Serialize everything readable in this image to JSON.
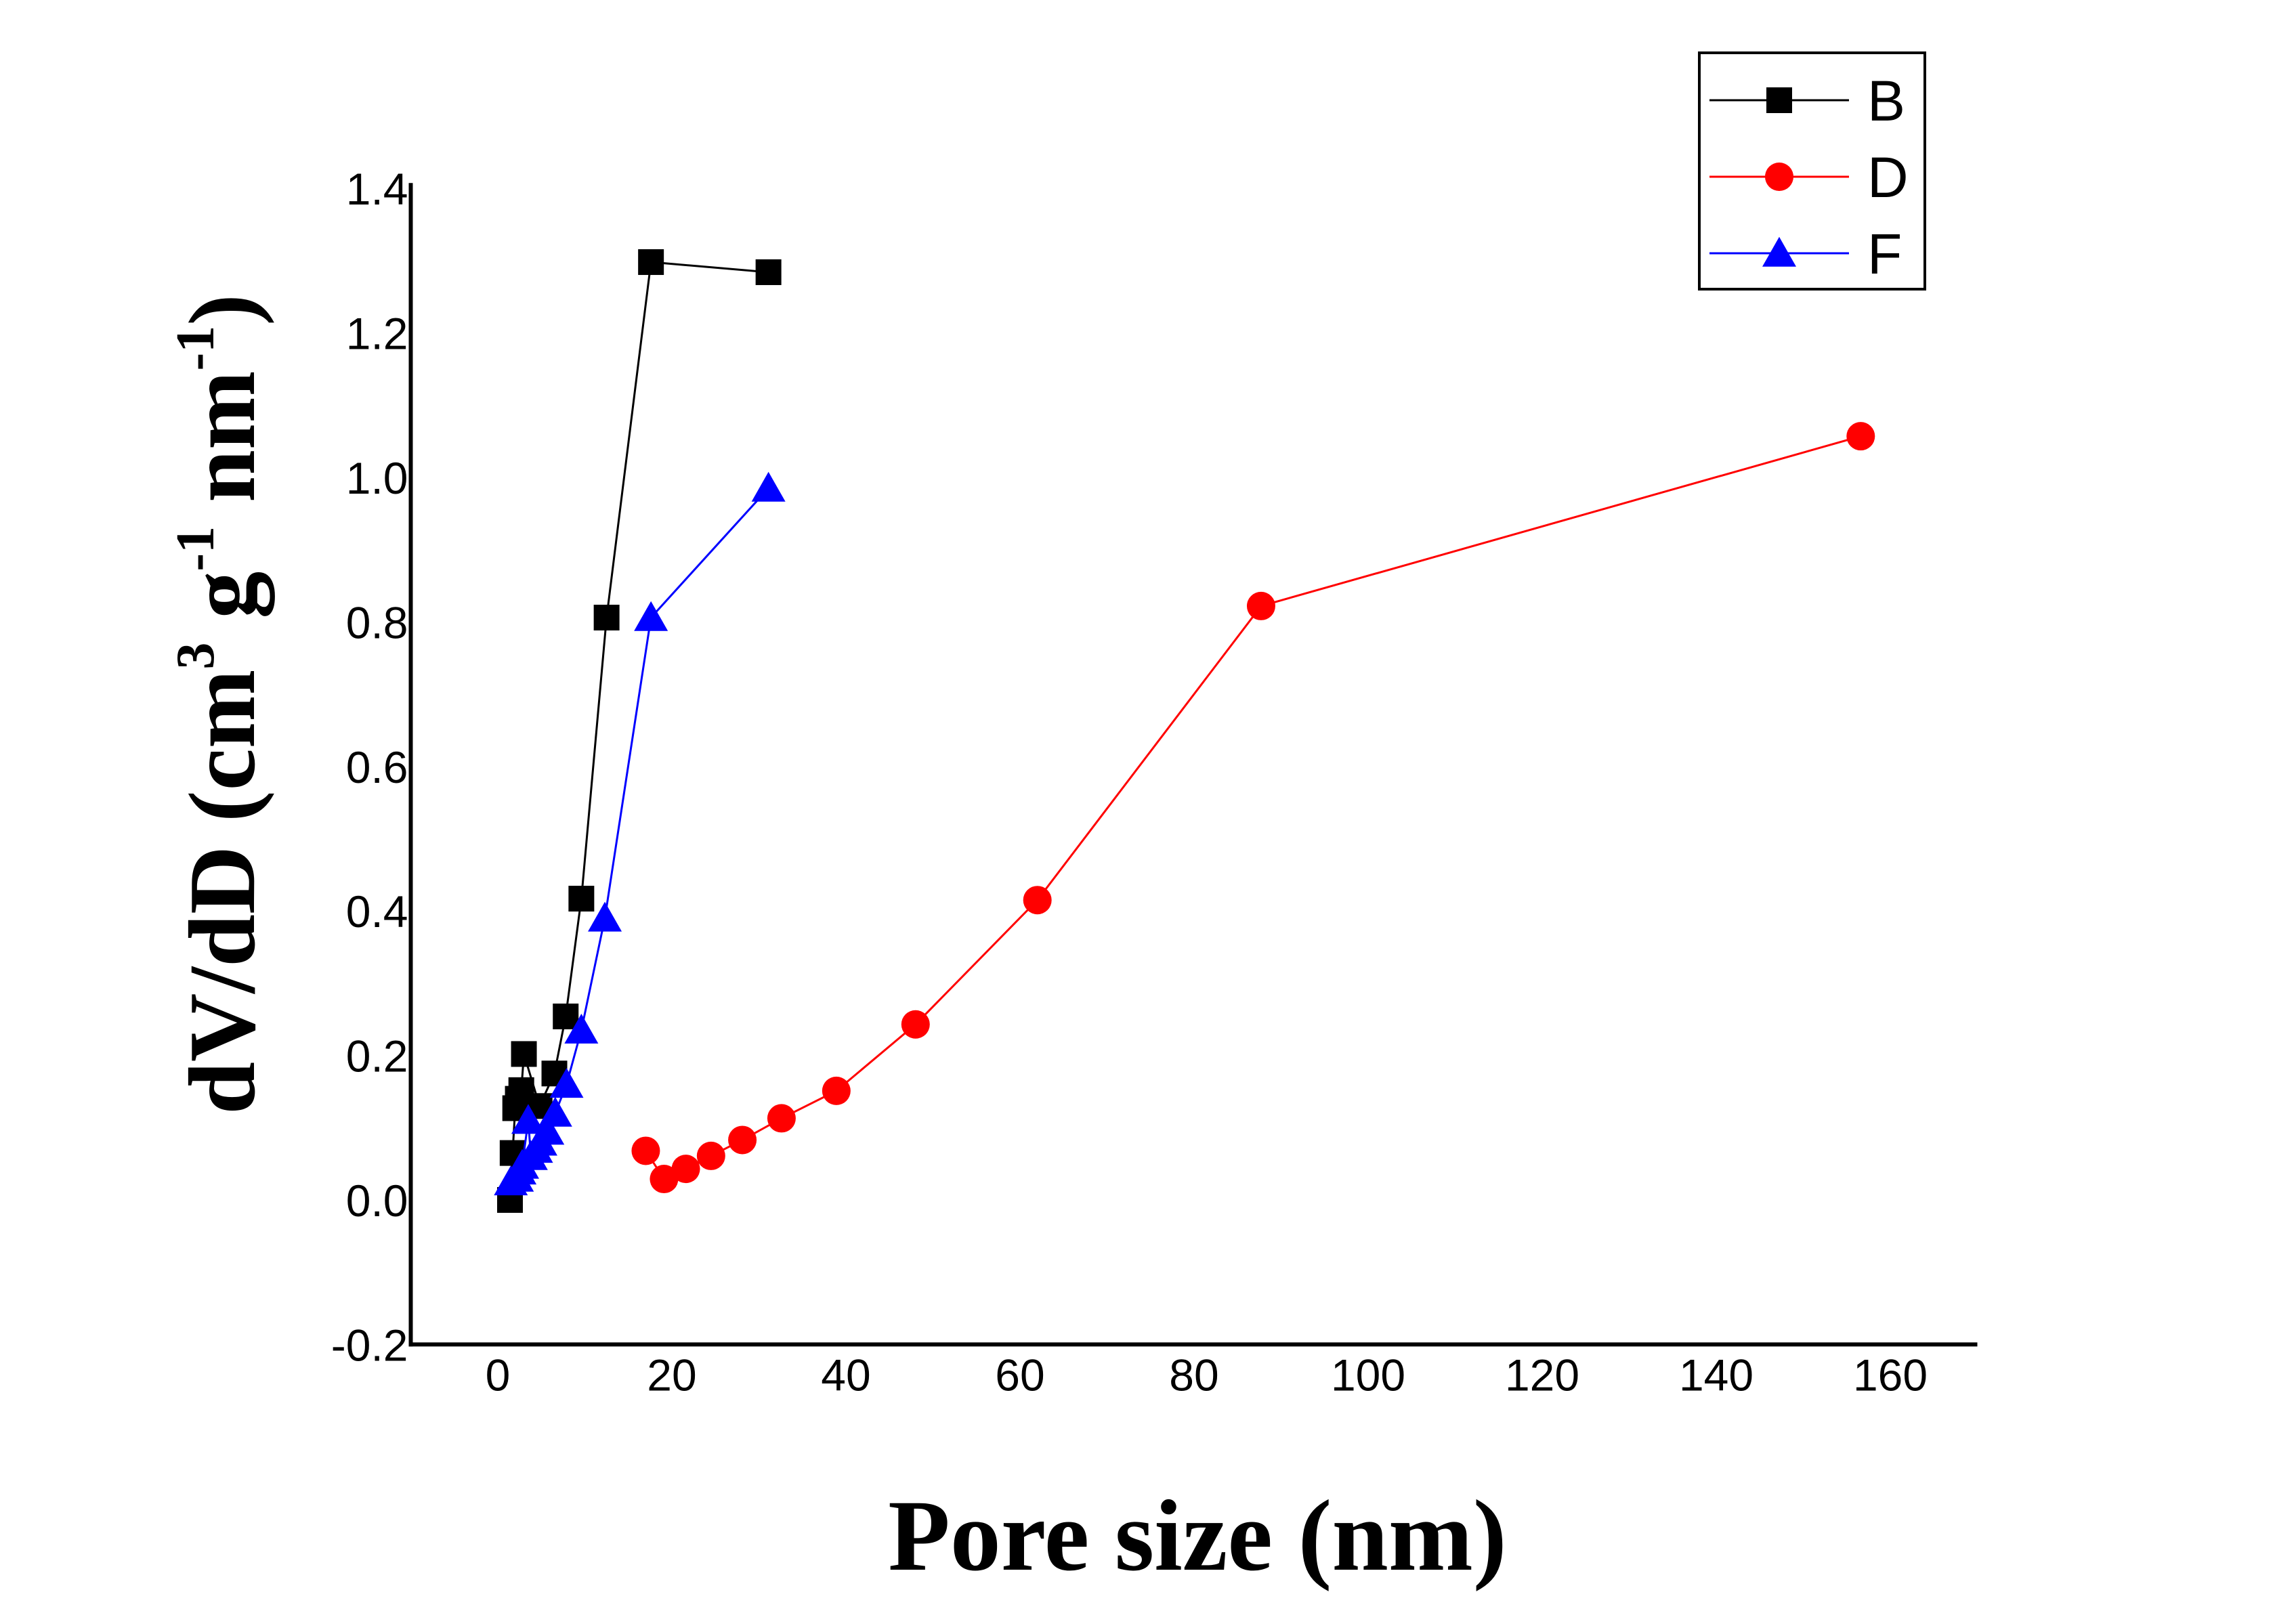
{
  "chart_data": {
    "type": "line",
    "title": "",
    "xlabel": "Pore size (nm)",
    "ylabel": {
      "base": "dV/dD (cm",
      "sup1": "3",
      "mid1": " g",
      "sup2": "-1",
      "mid2": " nm",
      "sup3": "-1",
      "end": ")",
      "full": "dV/dD (cm3 g-1 nm-1)"
    },
    "xlim": [
      -10,
      170
    ],
    "ylim": [
      -0.2,
      1.4
    ],
    "xticks": [
      0,
      20,
      40,
      60,
      80,
      100,
      120,
      140,
      160
    ],
    "xtick_labels": [
      "0",
      "20",
      "40",
      "60",
      "80",
      "100",
      "120",
      "140",
      "160"
    ],
    "yticks": [
      -0.2,
      0.0,
      0.2,
      0.4,
      0.6,
      0.8,
      1.0,
      1.2,
      1.4
    ],
    "ytick_labels": [
      "-0.2",
      "0.0",
      "0.2",
      "0.4",
      "0.6",
      "0.8",
      "1.0",
      "1.2",
      "1.4"
    ],
    "grid": false,
    "legend_position": "top-right",
    "series": [
      {
        "name": "B",
        "color": "#000000",
        "marker": "square",
        "x": [
          1.4,
          1.7,
          2.0,
          2.3,
          2.7,
          3.0,
          4.8,
          6.5,
          7.8,
          9.6,
          12.5,
          17.6,
          31.1
        ],
        "y": [
          0.0,
          0.065,
          0.127,
          0.14,
          0.152,
          0.202,
          0.13,
          0.175,
          0.254,
          0.417,
          0.806,
          1.298,
          1.284
        ]
      },
      {
        "name": "D",
        "color": "#ff0000",
        "marker": "circle",
        "x": [
          17.0,
          19.1,
          21.6,
          24.5,
          28.1,
          32.6,
          38.9,
          48.0,
          62.0,
          87.7,
          156.6
        ],
        "y": [
          0.068,
          0.029,
          0.043,
          0.061,
          0.083,
          0.113,
          0.151,
          0.243,
          0.415,
          0.822,
          1.057
        ]
      },
      {
        "name": "F",
        "color": "#0000ff",
        "marker": "triangle",
        "x": [
          1.5,
          2.2,
          2.5,
          2.8,
          3.5,
          3.8,
          4.4,
          4.9,
          5.7,
          6.6,
          7.9,
          9.6,
          12.3,
          17.6,
          31.1
        ],
        "y": [
          0.025,
          0.03,
          0.04,
          0.048,
          0.11,
          0.06,
          0.07,
          0.08,
          0.095,
          0.12,
          0.16,
          0.235,
          0.39,
          0.806,
          0.985
        ]
      }
    ]
  }
}
